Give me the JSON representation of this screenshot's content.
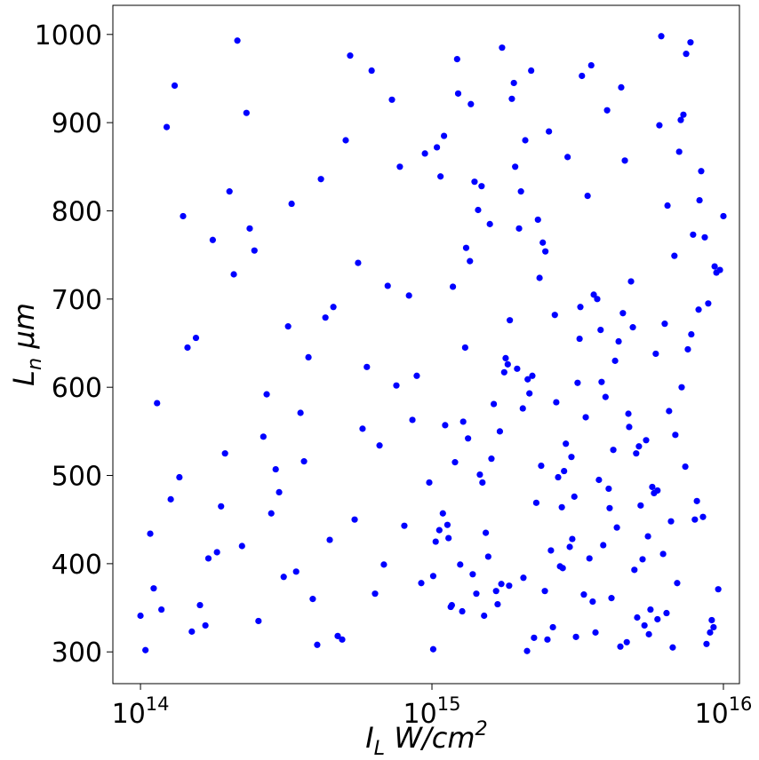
{
  "chart_data": {
    "type": "scatter",
    "x_label": "I_L W/cm^2",
    "y_label": "L_n μm",
    "xscale": "log",
    "color": "#0000ff",
    "xlim": [
      80400000000000.0,
      1.135e+16
    ],
    "ylim": [
      264,
      1033
    ],
    "xticks": [
      {
        "value": 100000000000000.0,
        "label": "10^14"
      },
      {
        "value": 1000000000000000.0,
        "label": "10^15"
      },
      {
        "value": 1e+16,
        "label": "10^16"
      }
    ],
    "yticks": [
      300,
      400,
      500,
      600,
      700,
      800,
      900,
      1000
    ],
    "x": [
      100000000000000.0,
      104000000000000.0,
      108000000000000.0,
      111000000000000.0,
      114000000000000.0,
      118000000000000.0,
      123000000000000.0,
      127000000000000.0,
      131000000000000.0,
      136000000000000.0,
      140000000000000.0,
      145000000000000.0,
      150000000000000.0,
      155000000000000.0,
      160000000000000.0,
      167000000000000.0,
      171000000000000.0,
      177000000000000.0,
      183000000000000.0,
      189000000000000.0,
      195000000000000.0,
      202000000000000.0,
      209000000000000.0,
      215000000000000.0,
      223000000000000.0,
      231000000000000.0,
      237000000000000.0,
      246000000000000.0,
      254000000000000.0,
      264000000000000.0,
      271000000000000.0,
      281000000000000.0,
      291000000000000.0,
      299000000000000.0,
      310000000000000.0,
      321000000000000.0,
      330000000000000.0,
      342000000000000.0,
      354000000000000.0,
      364000000000000.0,
      377000000000000.0,
      390000000000000.0,
      404000000000000.0,
      416000000000000.0,
      431000000000000.0,
      446000000000000.0,
      459000000000000.0,
      475000000000000.0,
      492000000000000.0,
      506000000000000.0,
      524000000000000.0,
      543000000000000.0,
      558000000000000.0,
      578000000000000.0,
      598000000000000.0,
      621000000000000.0,
      638000000000000.0,
      661000000000000.0,
      684000000000000.0,
      705000000000000.0,
      729000000000000.0,
      755000000000000.0,
      776000000000000.0,
      804000000000000.0,
      834000000000000.0,
      857000000000000.0,
      887000000000000.0,
      919000000000000.0,
      946000000000000.0,
      979000000000000.0,
      1010000000000000.0,
      1010000000000000.0,
      1030000000000000.0,
      1040000000000000.0,
      1060000000000000.0,
      1070000000000000.0,
      1090000000000000.0,
      1100000000000000.0,
      1110000000000000.0,
      1130000000000000.0,
      1140000000000000.0,
      1160000000000000.0,
      1170000000000000.0,
      1180000000000000.0,
      1200000000000000.0,
      1220000000000000.0,
      1230000000000000.0,
      1250000000000000.0,
      1270000000000000.0,
      1280000000000000.0,
      1300000000000000.0,
      1310000000000000.0,
      1330000000000000.0,
      1350000000000000.0,
      1360000000000000.0,
      1380000000000000.0,
      1400000000000000.0,
      1420000000000000.0,
      1440000000000000.0,
      1460000000000000.0,
      1480000000000000.0,
      1490000000000000.0,
      1510000000000000.0,
      1530000000000000.0,
      1560000000000000.0,
      1580000000000000.0,
      1600000000000000.0,
      1630000000000000.0,
      1660000000000000.0,
      1680000000000000.0,
      1710000000000000.0,
      1730000000000000.0,
      1740000000000000.0,
      1770000000000000.0,
      1790000000000000.0,
      1820000000000000.0,
      1840000000000000.0,
      1850000000000000.0,
      1880000000000000.0,
      1910000000000000.0,
      1930000000000000.0,
      1960000000000000.0,
      1990000000000000.0,
      2020000000000000.0,
      2050000000000000.0,
      2060000000000000.0,
      2090000000000000.0,
      2120000000000000.0,
      2130000000000000.0,
      2160000000000000.0,
      2190000000000000.0,
      2210000000000000.0,
      2240000000000000.0,
      2280000000000000.0,
      2310000000000000.0,
      2340000000000000.0,
      2370000000000000.0,
      2400000000000000.0,
      2440000000000000.0,
      2450000000000000.0,
      2490000000000000.0,
      2520000000000000.0,
      2560000000000000.0,
      2600000000000000.0,
      2640000000000000.0,
      2670000000000000.0,
      2710000000000000.0,
      2750000000000000.0,
      2790000000000000.0,
      2810000000000000.0,
      2840000000000000.0,
      2880000000000000.0,
      2920000000000000.0,
      2970000000000000.0,
      3010000000000000.0,
      3030000000000000.0,
      3080000000000000.0,
      3120000000000000.0,
      3160000000000000.0,
      3210000000000000.0,
      3230000000000000.0,
      3270000000000000.0,
      3320000000000000.0,
      3370000000000000.0,
      3420000000000000.0,
      3470000000000000.0,
      3520000000000000.0,
      3560000000000000.0,
      3590000000000000.0,
      3640000000000000.0,
      3690000000000000.0,
      3740000000000000.0,
      3790000000000000.0,
      3820000000000000.0,
      3870000000000000.0,
      3940000000000000.0,
      3990000000000000.0,
      4040000000000000.0,
      4070000000000000.0,
      4130000000000000.0,
      4190000000000000.0,
      4250000000000000.0,
      4310000000000000.0,
      4370000000000000.0,
      4430000000000000.0,
      4460000000000000.0,
      4520000000000000.0,
      4590000000000000.0,
      4660000000000000.0,
      4720000000000000.0,
      4750000000000000.0,
      4820000000000000.0,
      4890000000000000.0,
      4950000000000000.0,
      5020000000000000.0,
      5060000000000000.0,
      5130000000000000.0,
      5200000000000000.0,
      5280000000000000.0,
      5360000000000000.0,
      5430000000000000.0,
      5510000000000000.0,
      5550000000000000.0,
      5620000000000000.0,
      5700000000000000.0,
      5780000000000000.0,
      5860000000000000.0,
      5940000000000000.0,
      5940000000000000.0,
      6030000000000000.0,
      6120000000000000.0,
      6210000000000000.0,
      6290000000000000.0,
      6380000000000000.0,
      6430000000000000.0,
      6510000000000000.0,
      6610000000000000.0,
      6700000000000000.0,
      6790000000000000.0,
      6840000000000000.0,
      6940000000000000.0,
      7050000000000000.0,
      7140000000000000.0,
      7190000000000000.0,
      7290000000000000.0,
      7400000000000000.0,
      7450000000000000.0,
      7550000000000000.0,
      7710000000000000.0,
      7760000000000000.0,
      7870000000000000.0,
      7980000000000000.0,
      8110000000000000.0,
      8220000000000000.0,
      8280000000000000.0,
      8390000000000000.0,
      8510000000000000.0,
      8630000000000000.0,
      8750000000000000.0,
      8870000000000000.0,
      9000000000000000.0,
      9120000000000000.0,
      9250000000000000.0,
      9330000000000000.0,
      9460000000000000.0,
      9600000000000000.0,
      9730000000000000.0,
      1e+16
    ],
    "y": [
      341,
      302,
      434,
      372,
      582,
      348,
      895,
      473,
      942,
      498,
      794,
      645,
      323,
      656,
      353,
      330,
      406,
      767,
      413,
      465,
      525,
      822,
      728,
      993,
      420,
      911,
      780,
      755,
      335,
      544,
      592,
      457,
      507,
      481,
      385,
      669,
      808,
      391,
      571,
      516,
      634,
      360,
      308,
      836,
      679,
      427,
      691,
      318,
      314,
      880,
      976,
      450,
      741,
      553,
      623,
      959,
      366,
      534,
      399,
      715,
      926,
      602,
      850,
      443,
      704,
      563,
      613,
      378,
      865,
      492,
      303,
      386,
      425,
      872,
      438,
      839,
      457,
      885,
      557,
      444,
      429,
      351,
      353,
      714,
      515,
      972,
      933,
      399,
      346,
      561,
      645,
      758,
      542,
      743,
      921,
      388,
      833,
      366,
      801,
      501,
      828,
      492,
      341,
      435,
      408,
      785,
      519,
      581,
      369,
      354,
      550,
      377,
      985,
      617,
      633,
      626,
      375,
      676,
      927,
      945,
      850,
      621,
      780,
      822,
      576,
      384,
      880,
      301,
      609,
      593,
      959,
      613,
      316,
      469,
      790,
      724,
      511,
      764,
      369,
      754,
      314,
      890,
      415,
      328,
      682,
      583,
      498,
      397,
      464,
      395,
      505,
      536,
      861,
      419,
      521,
      428,
      476,
      317,
      605,
      655,
      691,
      953,
      365,
      566,
      817,
      406,
      965,
      357,
      705,
      322,
      700,
      495,
      665,
      606,
      421,
      589,
      914,
      485,
      463,
      361,
      529,
      630,
      441,
      652,
      306,
      940,
      684,
      857,
      311,
      570,
      555,
      720,
      668,
      393,
      525,
      339,
      533,
      466,
      405,
      330,
      540,
      431,
      320,
      348,
      487,
      480,
      638,
      337,
      483,
      897,
      998,
      411,
      672,
      344,
      806,
      573,
      448,
      305,
      749,
      546,
      378,
      867,
      903,
      600,
      909,
      510,
      978,
      643,
      991,
      660,
      773,
      450,
      471,
      688,
      812,
      845,
      453,
      770,
      309,
      695,
      322,
      336,
      328,
      737,
      730,
      371,
      733,
      794
    ]
  }
}
